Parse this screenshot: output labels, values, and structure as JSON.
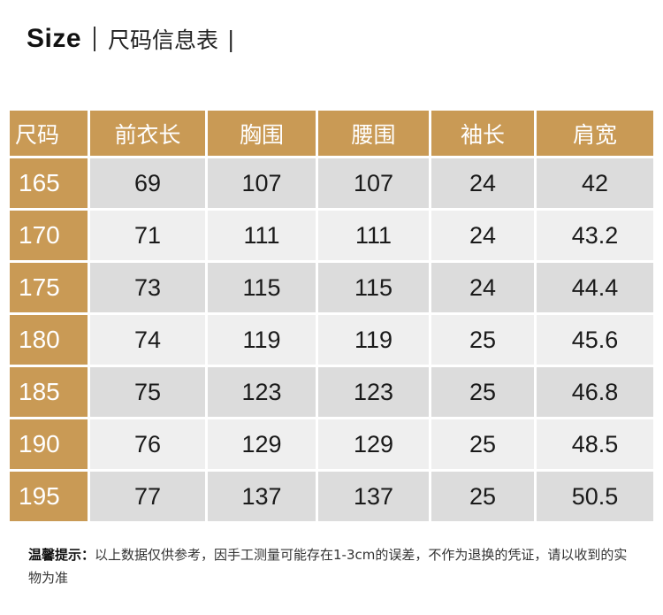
{
  "title": {
    "en": "Size",
    "cn": "尺码信息表",
    "end_bar": "|"
  },
  "table": {
    "headers": [
      "尺码",
      "前衣长",
      "胸围",
      "腰围",
      "袖长",
      "肩宽"
    ],
    "rows": [
      [
        "165",
        "69",
        "107",
        "107",
        "24",
        "42"
      ],
      [
        "170",
        "71",
        "111",
        "111",
        "24",
        "43.2"
      ],
      [
        "175",
        "73",
        "115",
        "115",
        "24",
        "44.4"
      ],
      [
        "180",
        "74",
        "119",
        "119",
        "25",
        "45.6"
      ],
      [
        "185",
        "75",
        "123",
        "123",
        "25",
        "46.8"
      ],
      [
        "190",
        "76",
        "129",
        "129",
        "25",
        "48.5"
      ],
      [
        "195",
        "77",
        "137",
        "137",
        "25",
        "50.5"
      ]
    ]
  },
  "note": {
    "label": "温馨提示：",
    "text": "以上数据仅供参考，因手工测量可能存在1-3cm的误差，不作为退换的凭证，请以收到的实物为准"
  },
  "colors": {
    "header_bg": "#c99a55",
    "row_dark": "#dcdcdc",
    "row_light": "#efefef"
  }
}
